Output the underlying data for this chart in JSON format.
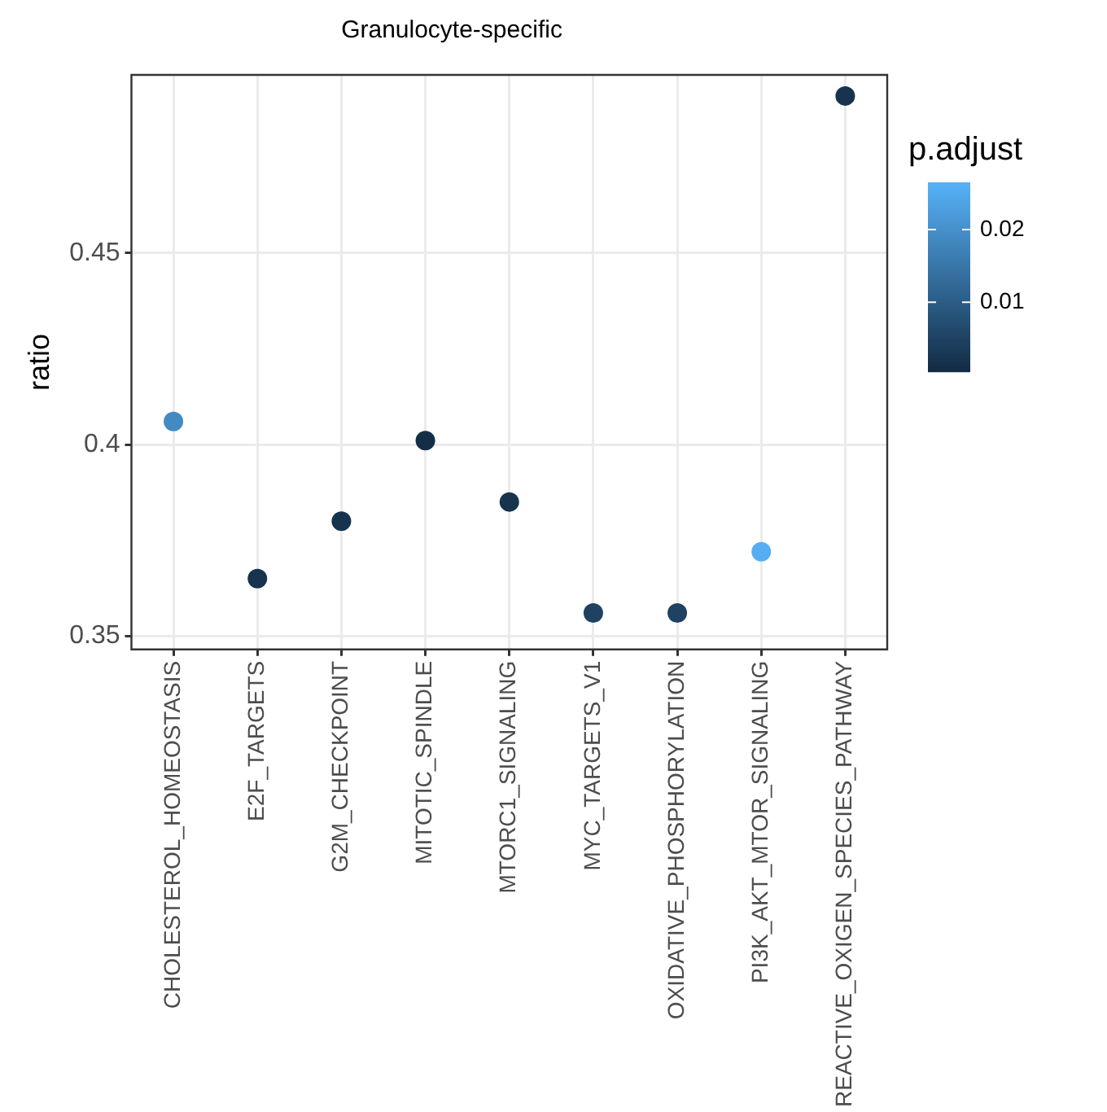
{
  "chart_data": {
    "type": "scatter",
    "title": "Granulocyte-specific",
    "ylabel": "ratio",
    "clabel": "p.adjust",
    "categories": [
      "CHOLESTEROL_HOMEOSTASIS",
      "E2F_TARGETS",
      "G2M_CHECKPOINT",
      "MITOTIC_SPINDLE",
      "MTORC1_SIGNALING",
      "MYC_TARGETS_V1",
      "OXIDATIVE_PHOSPHORYLATION",
      "PI3K_AKT_MTOR_SIGNALING",
      "REACTIVE_OXIGEN_SPECIES_PATHWAY"
    ],
    "values": [
      0.406,
      0.365,
      0.38,
      0.401,
      0.385,
      0.356,
      0.356,
      0.372,
      0.491
    ],
    "cvalues": [
      0.019,
      0.002,
      0.002,
      0.001,
      0.002,
      0.005,
      0.005,
      0.026,
      0.002
    ],
    "clim": [
      0.0005,
      0.0265
    ],
    "cticks": [
      0.01,
      0.02
    ],
    "ylim": [
      0.3465,
      0.4965
    ],
    "yticks": [
      0.35,
      0.4,
      0.45
    ],
    "grid": true,
    "marker": "circle",
    "legend": false
  }
}
